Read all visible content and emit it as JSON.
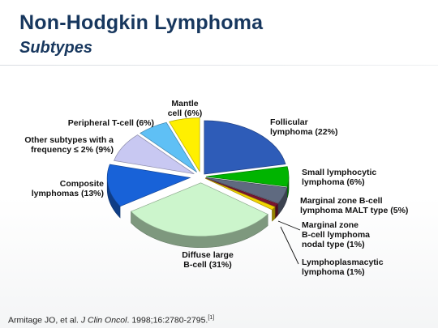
{
  "slide": {
    "title": "Non-Hodgkin Lymphoma",
    "subtitle": "Subtypes"
  },
  "chart_data": {
    "type": "pie",
    "title": "",
    "style": "3d-exploded",
    "slices": [
      {
        "label": "Follicular lymphoma (22%)",
        "lines": [
          "Follicular",
          "lymphoma (22%)"
        ],
        "value": 22,
        "color": "#2e5cb8"
      },
      {
        "label": "Small lymphocytic lymphoma (6%)",
        "lines": [
          "Small lymphocytic",
          "lymphoma (6%)"
        ],
        "value": 6,
        "color": "#00b400"
      },
      {
        "label": "Marginal zone B-cell lymphoma MALT type (5%)",
        "lines": [
          "Marginal zone B-cell",
          "lymphoma MALT type (5%)"
        ],
        "value": 5,
        "color": "#5f6a80"
      },
      {
        "label": "Marginal zone B-cell lymphoma nodal type (1%)",
        "lines": [
          "Marginal zone",
          "B-cell lymphoma",
          "nodal type (1%)"
        ],
        "value": 1,
        "color": "#7a1530"
      },
      {
        "label": "Lymphoplasmacytic lymphoma (1%)",
        "lines": [
          "Lymphoplasmacytic",
          "lymphoma (1%)"
        ],
        "value": 1,
        "color": "#f2d400"
      },
      {
        "label": "Diffuse large B-cell (31%)",
        "lines": [
          "Diffuse large",
          "B-cell (31%)"
        ],
        "value": 31,
        "color": "#ccf5cc"
      },
      {
        "label": "Composite lymphomas (13%)",
        "lines": [
          "Composite",
          "lymphomas (13%)"
        ],
        "value": 13,
        "color": "#1862d8"
      },
      {
        "label": "Other subtypes with a frequency ≤ 2% (9%)",
        "lines": [
          "Other subtypes with a",
          "frequency ≤ 2% (9%)"
        ],
        "value": 9,
        "color": "#c8c8f2"
      },
      {
        "label": "Peripheral T-cell (6%)",
        "lines": [
          "Peripheral T-cell (6%)"
        ],
        "value": 6,
        "color": "#5fc0f5"
      },
      {
        "label": "Mantle cell (6%)",
        "lines": [
          "Mantle",
          "cell (6%)"
        ],
        "value": 6,
        "color": "#fff000"
      }
    ]
  },
  "citation": {
    "prefix": "Armitage JO, et al. ",
    "journal": "J Clin Oncol",
    "rest": ". 1998;16:2780-2795.",
    "ref": "[1]"
  }
}
